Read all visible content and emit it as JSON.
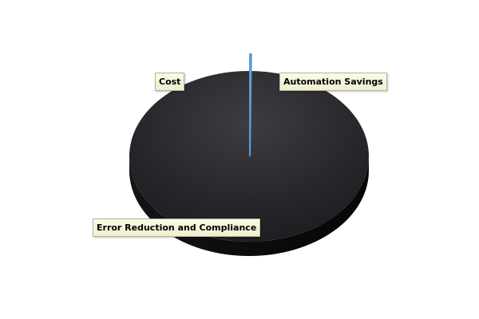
{
  "chart_data": {
    "type": "pie",
    "style": "3d",
    "categories": [
      "Automation Savings",
      "Error Reduction and Compliance",
      "Cost"
    ],
    "values": [
      0.25,
      0,
      99.75
    ],
    "colors": [
      "#5b9bd5",
      "#5b9bd5",
      "#2a2a2e"
    ],
    "legend": "none",
    "data_labels": "category names in callout boxes"
  }
}
